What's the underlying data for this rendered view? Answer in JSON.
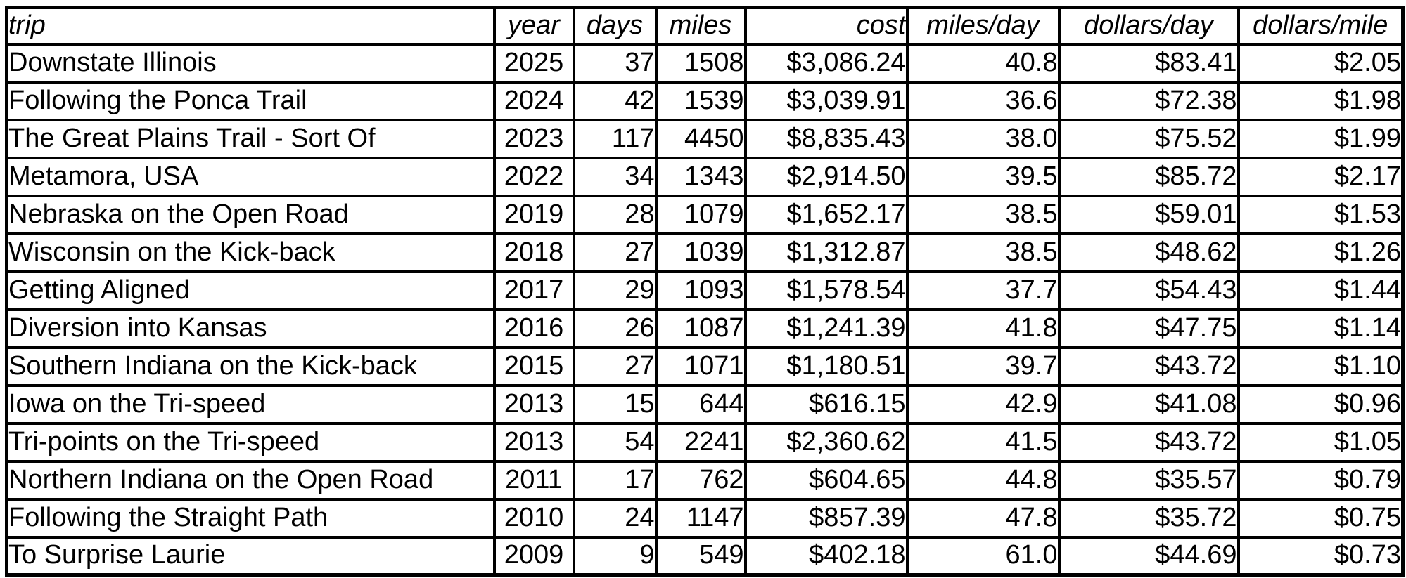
{
  "colors": {
    "border": "#000000",
    "background": "#ffffff",
    "text": "#000000"
  },
  "table": {
    "columns": [
      {
        "key": "trip",
        "label": "trip",
        "align": "left",
        "header_align": "left"
      },
      {
        "key": "year",
        "label": "year",
        "align": "center",
        "header_align": "center"
      },
      {
        "key": "days",
        "label": "days",
        "align": "right",
        "header_align": "center"
      },
      {
        "key": "miles",
        "label": "miles",
        "align": "right",
        "header_align": "center"
      },
      {
        "key": "cost",
        "label": "cost",
        "align": "right",
        "header_align": "right"
      },
      {
        "key": "miles_per_day",
        "label": "miles/day",
        "align": "right",
        "header_align": "center"
      },
      {
        "key": "dollars_per_day",
        "label": "dollars/day",
        "align": "right",
        "header_align": "center"
      },
      {
        "key": "dollars_per_mile",
        "label": "dollars/mile",
        "align": "right",
        "header_align": "center"
      }
    ],
    "rows": [
      {
        "trip": "Downstate Illinois",
        "year": "2025",
        "days": "37",
        "miles": "1508",
        "cost": "$3,086.24",
        "miles_per_day": "40.8",
        "dollars_per_day": "$83.41",
        "dollars_per_mile": "$2.05"
      },
      {
        "trip": "Following the Ponca Trail",
        "year": "2024",
        "days": "42",
        "miles": "1539",
        "cost": "$3,039.91",
        "miles_per_day": "36.6",
        "dollars_per_day": "$72.38",
        "dollars_per_mile": "$1.98"
      },
      {
        "trip": "The Great Plains Trail - Sort Of",
        "year": "2023",
        "days": "117",
        "miles": "4450",
        "cost": "$8,835.43",
        "miles_per_day": "38.0",
        "dollars_per_day": "$75.52",
        "dollars_per_mile": "$1.99"
      },
      {
        "trip": "Metamora, USA",
        "year": "2022",
        "days": "34",
        "miles": "1343",
        "cost": "$2,914.50",
        "miles_per_day": "39.5",
        "dollars_per_day": "$85.72",
        "dollars_per_mile": "$2.17"
      },
      {
        "trip": "Nebraska on the Open Road",
        "year": "2019",
        "days": "28",
        "miles": "1079",
        "cost": "$1,652.17",
        "miles_per_day": "38.5",
        "dollars_per_day": "$59.01",
        "dollars_per_mile": "$1.53"
      },
      {
        "trip": "Wisconsin on the Kick-back",
        "year": "2018",
        "days": "27",
        "miles": "1039",
        "cost": "$1,312.87",
        "miles_per_day": "38.5",
        "dollars_per_day": "$48.62",
        "dollars_per_mile": "$1.26"
      },
      {
        "trip": "Getting Aligned",
        "year": "2017",
        "days": "29",
        "miles": "1093",
        "cost": "$1,578.54",
        "miles_per_day": "37.7",
        "dollars_per_day": "$54.43",
        "dollars_per_mile": "$1.44"
      },
      {
        "trip": "Diversion into Kansas",
        "year": "2016",
        "days": "26",
        "miles": "1087",
        "cost": "$1,241.39",
        "miles_per_day": "41.8",
        "dollars_per_day": "$47.75",
        "dollars_per_mile": "$1.14"
      },
      {
        "trip": "Southern Indiana on the Kick-back",
        "year": "2015",
        "days": "27",
        "miles": "1071",
        "cost": "$1,180.51",
        "miles_per_day": "39.7",
        "dollars_per_day": "$43.72",
        "dollars_per_mile": "$1.10"
      },
      {
        "trip": "Iowa on the Tri-speed",
        "year": "2013",
        "days": "15",
        "miles": "644",
        "cost": "$616.15",
        "miles_per_day": "42.9",
        "dollars_per_day": "$41.08",
        "dollars_per_mile": "$0.96"
      },
      {
        "trip": "Tri-points on the Tri-speed",
        "year": "2013",
        "days": "54",
        "miles": "2241",
        "cost": "$2,360.62",
        "miles_per_day": "41.5",
        "dollars_per_day": "$43.72",
        "dollars_per_mile": "$1.05"
      },
      {
        "trip": "Northern Indiana on the Open Road",
        "year": "2011",
        "days": "17",
        "miles": "762",
        "cost": "$604.65",
        "miles_per_day": "44.8",
        "dollars_per_day": "$35.57",
        "dollars_per_mile": "$0.79"
      },
      {
        "trip": "Following the Straight Path",
        "year": "2010",
        "days": "24",
        "miles": "1147",
        "cost": "$857.39",
        "miles_per_day": "47.8",
        "dollars_per_day": "$35.72",
        "dollars_per_mile": "$0.75"
      },
      {
        "trip": "To Surprise Laurie",
        "year": "2009",
        "days": "9",
        "miles": "549",
        "cost": "$402.18",
        "miles_per_day": "61.0",
        "dollars_per_day": "$44.69",
        "dollars_per_mile": "$0.73"
      }
    ]
  }
}
